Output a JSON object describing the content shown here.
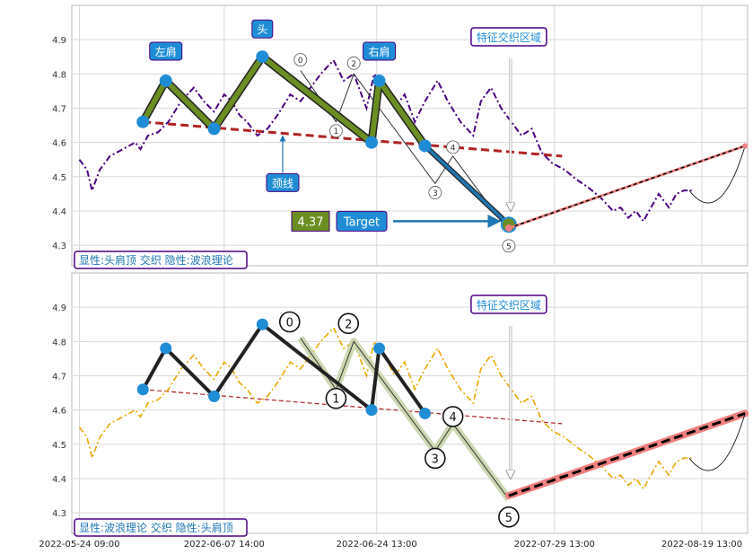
{
  "chart_data": [
    {
      "type": "line",
      "title": "",
      "xlabel": "",
      "ylabel": "",
      "ylim": [
        4.24,
        5.0
      ],
      "xlim": [
        -3,
        263
      ],
      "grid": true,
      "yticks": [
        "4.3",
        "4.4",
        "4.5",
        "4.6",
        "4.7",
        "4.8",
        "4.9"
      ],
      "caption": "显性:头肩顶 交织 隐性:波浪理论",
      "series": [
        {
          "name": "",
          "style": "dashdot",
          "color": "#4b0082",
          "points": [
            [
              0,
              4.55
            ],
            [
              3,
              4.52
            ],
            [
              5,
              4.46
            ],
            [
              8,
              4.52
            ],
            [
              12,
              4.56
            ],
            [
              17,
              4.58
            ],
            [
              22,
              4.6
            ],
            [
              24,
              4.58
            ],
            [
              27,
              4.62
            ],
            [
              31,
              4.63
            ],
            [
              35,
              4.66
            ],
            [
              40,
              4.72
            ],
            [
              45,
              4.76
            ],
            [
              49,
              4.72
            ],
            [
              53,
              4.69
            ],
            [
              57,
              4.74
            ],
            [
              60,
              4.72
            ],
            [
              63,
              4.68
            ],
            [
              66,
              4.66
            ],
            [
              70,
              4.62
            ],
            [
              74,
              4.64
            ],
            [
              78,
              4.68
            ],
            [
              83,
              4.74
            ],
            [
              87,
              4.72
            ],
            [
              90,
              4.75
            ],
            [
              95,
              4.8
            ],
            [
              100,
              4.84
            ],
            [
              104,
              4.78
            ],
            [
              108,
              4.8
            ],
            [
              113,
              4.7
            ],
            [
              116,
              4.8
            ],
            [
              120,
              4.76
            ],
            [
              124,
              4.7
            ],
            [
              128,
              4.74
            ],
            [
              132,
              4.66
            ],
            [
              136,
              4.72
            ],
            [
              141,
              4.78
            ],
            [
              145,
              4.72
            ],
            [
              150,
              4.66
            ],
            [
              155,
              4.62
            ],
            [
              158,
              4.72
            ],
            [
              162,
              4.76
            ],
            [
              166,
              4.7
            ],
            [
              170,
              4.66
            ],
            [
              174,
              4.62
            ],
            [
              178,
              4.64
            ],
            [
              182,
              4.57
            ],
            [
              186,
              4.54
            ],
            [
              191,
              4.52
            ],
            [
              196,
              4.49
            ],
            [
              200,
              4.47
            ],
            [
              205,
              4.44
            ],
            [
              210,
              4.4
            ],
            [
              213,
              4.41
            ],
            [
              216,
              4.38
            ],
            [
              219,
              4.4
            ],
            [
              222,
              4.37
            ],
            [
              225,
              4.41
            ],
            [
              228,
              4.45
            ],
            [
              232,
              4.41
            ],
            [
              235,
              4.45
            ],
            [
              238,
              4.46
            ],
            [
              241,
              4.46
            ]
          ]
        }
      ],
      "pattern": {
        "name": "头肩顶",
        "points": [
          [
            25,
            4.66
          ],
          [
            34,
            4.78
          ],
          [
            53,
            4.64
          ],
          [
            72,
            4.85
          ],
          [
            115,
            4.6
          ],
          [
            118,
            4.78
          ],
          [
            136,
            4.59
          ],
          [
            169,
            4.36
          ]
        ],
        "labels": [
          {
            "text": "左肩",
            "at": [
              34,
              4.78
            ]
          },
          {
            "text": "头",
            "at": [
              72,
              4.85
            ]
          },
          {
            "text": "右肩",
            "at": [
              118,
              4.78
            ]
          }
        ]
      },
      "neckline": {
        "from": [
          25,
          4.66
        ],
        "to": [
          190,
          4.56
        ],
        "label": "颈线"
      },
      "wave": {
        "points": [
          [
            87,
            4.81
          ],
          [
            101,
            4.66
          ],
          [
            108,
            4.8
          ],
          [
            140,
            4.48
          ],
          [
            147,
            4.56
          ],
          [
            169,
            4.34
          ]
        ],
        "labels": [
          "0",
          "1",
          "2",
          "3",
          "4",
          "5"
        ]
      },
      "projection": {
        "from": [
          169,
          4.35
        ],
        "to": [
          262,
          4.59
        ]
      },
      "target": {
        "value": "4.37",
        "label": "Target",
        "price": 4.37
      },
      "zone_label": "特征交织区域",
      "zone_x": 169
    },
    {
      "type": "line",
      "title": "",
      "xlabel": "",
      "ylabel": "",
      "ylim": [
        4.24,
        5.0
      ],
      "xlim": [
        -3,
        263
      ],
      "grid": true,
      "yticks": [
        "4.3",
        "4.4",
        "4.5",
        "4.6",
        "4.7",
        "4.8",
        "4.9"
      ],
      "xticks": [
        "2022-05-24 09:00",
        "2022-06-07 14:00",
        "2022-06-24 13:00",
        "2022-07-29 13:00",
        "2022-08-19 13:00"
      ],
      "caption": "显性:波浪理论 交织 隐性:头肩顶",
      "series": [
        {
          "name": "",
          "style": "dashdot",
          "color": "#e8a800",
          "points": [
            [
              0,
              4.55
            ],
            [
              3,
              4.52
            ],
            [
              5,
              4.46
            ],
            [
              8,
              4.52
            ],
            [
              12,
              4.56
            ],
            [
              17,
              4.58
            ],
            [
              22,
              4.6
            ],
            [
              24,
              4.58
            ],
            [
              27,
              4.62
            ],
            [
              31,
              4.63
            ],
            [
              35,
              4.66
            ],
            [
              40,
              4.72
            ],
            [
              45,
              4.76
            ],
            [
              49,
              4.72
            ],
            [
              53,
              4.69
            ],
            [
              57,
              4.74
            ],
            [
              60,
              4.72
            ],
            [
              63,
              4.68
            ],
            [
              66,
              4.66
            ],
            [
              70,
              4.62
            ],
            [
              74,
              4.64
            ],
            [
              78,
              4.68
            ],
            [
              83,
              4.74
            ],
            [
              87,
              4.72
            ],
            [
              90,
              4.75
            ],
            [
              95,
              4.8
            ],
            [
              100,
              4.84
            ],
            [
              104,
              4.78
            ],
            [
              108,
              4.8
            ],
            [
              113,
              4.7
            ],
            [
              116,
              4.8
            ],
            [
              120,
              4.76
            ],
            [
              124,
              4.7
            ],
            [
              128,
              4.74
            ],
            [
              132,
              4.66
            ],
            [
              136,
              4.72
            ],
            [
              141,
              4.78
            ],
            [
              145,
              4.72
            ],
            [
              150,
              4.66
            ],
            [
              155,
              4.62
            ],
            [
              158,
              4.72
            ],
            [
              162,
              4.76
            ],
            [
              166,
              4.7
            ],
            [
              170,
              4.66
            ],
            [
              174,
              4.62
            ],
            [
              178,
              4.64
            ],
            [
              182,
              4.57
            ],
            [
              186,
              4.54
            ],
            [
              191,
              4.52
            ],
            [
              196,
              4.49
            ],
            [
              200,
              4.47
            ],
            [
              205,
              4.44
            ],
            [
              210,
              4.4
            ],
            [
              213,
              4.41
            ],
            [
              216,
              4.38
            ],
            [
              219,
              4.4
            ],
            [
              222,
              4.37
            ],
            [
              225,
              4.41
            ],
            [
              228,
              4.45
            ],
            [
              232,
              4.41
            ],
            [
              235,
              4.45
            ],
            [
              238,
              4.46
            ],
            [
              241,
              4.46
            ]
          ]
        }
      ],
      "pattern": {
        "points": [
          [
            25,
            4.66
          ],
          [
            34,
            4.78
          ],
          [
            53,
            4.64
          ],
          [
            72,
            4.85
          ],
          [
            115,
            4.6
          ],
          [
            118,
            4.78
          ],
          [
            136,
            4.59
          ]
        ]
      },
      "neckline": {
        "from": [
          25,
          4.66
        ],
        "to": [
          190,
          4.56
        ]
      },
      "wave": {
        "points": [
          [
            87,
            4.81
          ],
          [
            101,
            4.66
          ],
          [
            108,
            4.8
          ],
          [
            140,
            4.48
          ],
          [
            147,
            4.56
          ],
          [
            169,
            4.34
          ]
        ],
        "labels": [
          "0",
          "1",
          "2",
          "3",
          "4",
          "5"
        ]
      },
      "projection": {
        "from": [
          169,
          4.35
        ],
        "to": [
          262,
          4.59
        ]
      },
      "zone_label": "特征交织区域",
      "zone_x": 169
    }
  ]
}
